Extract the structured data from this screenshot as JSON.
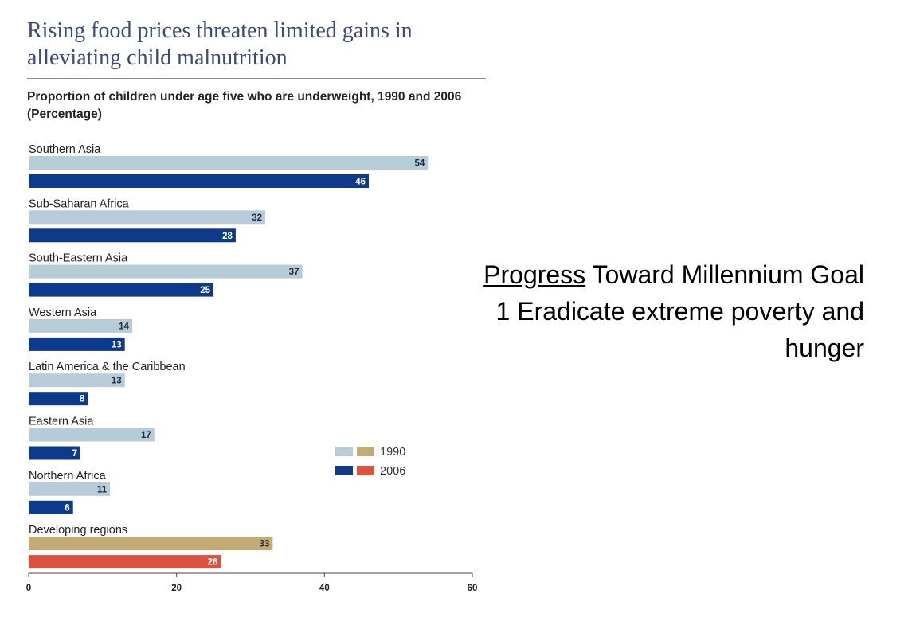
{
  "chart_data": {
    "type": "bar",
    "orientation": "horizontal",
    "title": "Rising food prices threaten limited gains in alleviating child malnutrition",
    "subtitle": "Proportion of children under age five who are underweight, 1990 and 2006",
    "unit": "(Percentage)",
    "categories": [
      "Southern Asia",
      "Sub-Saharan Africa",
      "South-Eastern Asia",
      "Western Asia",
      "Latin America & the Caribbean",
      "Eastern Asia",
      "Northern Africa",
      "Developing regions"
    ],
    "series": [
      {
        "name": "1990",
        "values": [
          54,
          32,
          37,
          14,
          13,
          17,
          11,
          33
        ]
      },
      {
        "name": "2006",
        "values": [
          46,
          28,
          25,
          13,
          8,
          7,
          6,
          26
        ]
      }
    ],
    "xlim": [
      0,
      60
    ],
    "xticks": [
      0,
      20,
      40,
      60
    ],
    "grid": false,
    "legend": {
      "placement": "right",
      "entries": [
        "1990",
        "2006"
      ]
    },
    "colors": {
      "1990": "#b7ccd9",
      "2006": "#0d3a8a",
      "1990_aggregate": "#c2ab74",
      "2006_aggregate": "#dd523f"
    }
  },
  "side_note": {
    "highlight": "Progress",
    "rest": " Toward Millennium Goal 1 Eradicate extreme poverty and hunger"
  }
}
